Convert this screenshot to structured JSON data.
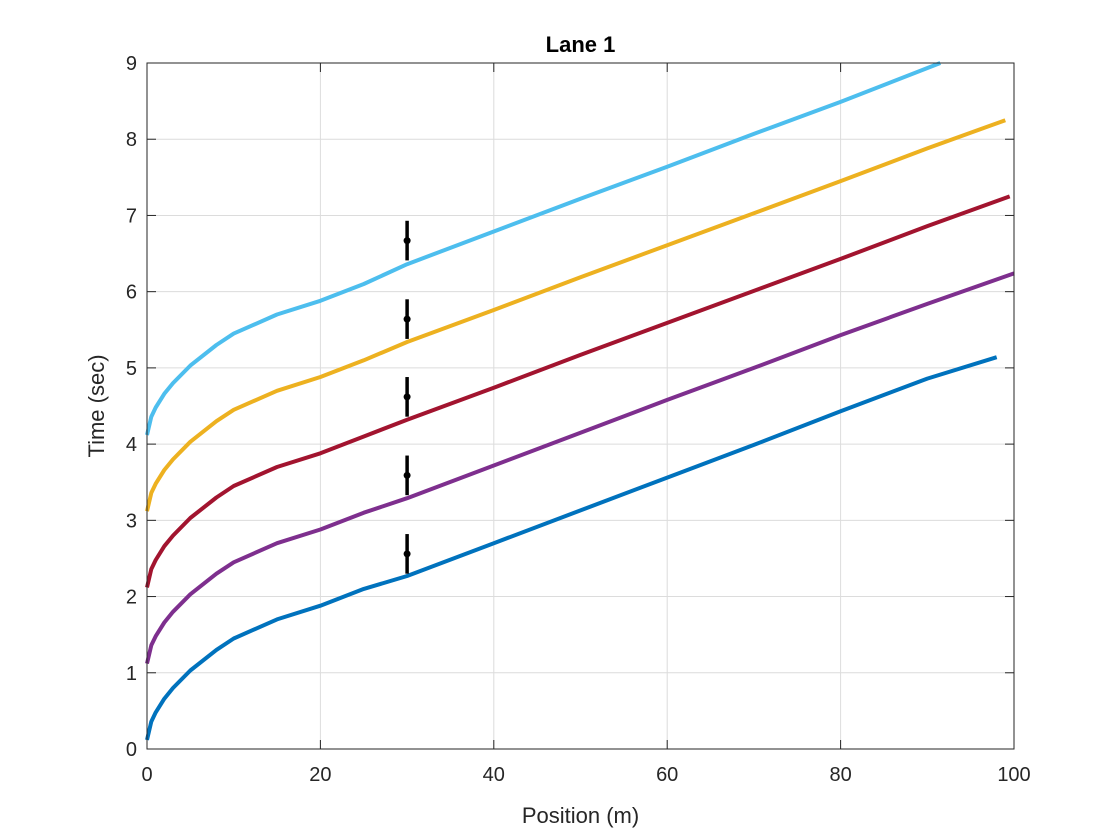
{
  "chart_data": {
    "type": "line",
    "title": "Lane 1",
    "xlabel": "Position (m)",
    "ylabel": "Time (sec)",
    "xlim": [
      0,
      100
    ],
    "ylim": [
      0,
      9
    ],
    "xticks": [
      0,
      20,
      40,
      60,
      80,
      100
    ],
    "yticks": [
      0,
      1,
      2,
      3,
      4,
      5,
      6,
      7,
      8,
      9
    ],
    "grid": true,
    "series": [
      {
        "color": "#0072BD",
        "x": [
          0,
          0.5,
          1,
          2,
          3,
          5,
          8,
          10,
          15,
          20,
          25,
          30,
          40,
          50,
          60,
          70,
          80,
          90,
          98
        ],
        "y": [
          0.12,
          0.36,
          0.48,
          0.66,
          0.8,
          1.03,
          1.3,
          1.45,
          1.7,
          1.88,
          2.1,
          2.27,
          2.7,
          3.13,
          3.56,
          3.99,
          4.43,
          4.86,
          5.14
        ]
      },
      {
        "color": "#7E2F8E",
        "x": [
          0,
          0.5,
          1,
          2,
          3,
          5,
          8,
          10,
          15,
          20,
          25,
          30,
          40,
          50,
          60,
          70,
          80,
          90,
          100
        ],
        "y": [
          1.12,
          1.36,
          1.48,
          1.66,
          1.8,
          2.03,
          2.3,
          2.45,
          2.7,
          2.88,
          3.1,
          3.29,
          3.72,
          4.15,
          4.58,
          5.0,
          5.43,
          5.84,
          6.24
        ]
      },
      {
        "color": "#A2142F",
        "x": [
          0,
          0.5,
          1,
          2,
          3,
          5,
          8,
          10,
          15,
          20,
          25,
          30,
          40,
          50,
          60,
          70,
          80,
          90,
          99.5
        ],
        "y": [
          2.12,
          2.36,
          2.48,
          2.66,
          2.8,
          3.03,
          3.3,
          3.45,
          3.7,
          3.88,
          4.1,
          4.32,
          4.74,
          5.17,
          5.59,
          6.01,
          6.43,
          6.86,
          7.25
        ]
      },
      {
        "color": "#EDB120",
        "x": [
          0,
          0.5,
          1,
          2,
          3,
          5,
          8,
          10,
          15,
          20,
          25,
          30,
          40,
          50,
          60,
          70,
          80,
          90,
          99
        ],
        "y": [
          3.12,
          3.36,
          3.48,
          3.66,
          3.8,
          4.03,
          4.3,
          4.45,
          4.7,
          4.88,
          5.1,
          5.34,
          5.76,
          6.19,
          6.61,
          7.03,
          7.45,
          7.88,
          8.25
        ]
      },
      {
        "color": "#4DBEEE",
        "x": [
          0,
          0.5,
          1,
          2,
          3,
          5,
          8,
          10,
          15,
          20,
          25,
          30,
          40,
          50,
          60,
          70,
          80,
          91.5
        ],
        "y": [
          4.12,
          4.36,
          4.48,
          4.66,
          4.8,
          5.03,
          5.3,
          5.45,
          5.7,
          5.88,
          6.1,
          6.36,
          6.79,
          7.22,
          7.64,
          8.07,
          8.49,
          9.0
        ]
      }
    ],
    "error_bars": {
      "color": "#000000",
      "points": [
        {
          "x": 30,
          "y": 2.56,
          "low": 2.3,
          "high": 2.82
        },
        {
          "x": 30,
          "y": 3.59,
          "low": 3.33,
          "high": 3.85
        },
        {
          "x": 30,
          "y": 4.62,
          "low": 4.36,
          "high": 4.88
        },
        {
          "x": 30,
          "y": 5.64,
          "low": 5.38,
          "high": 5.9
        },
        {
          "x": 30,
          "y": 6.67,
          "low": 6.41,
          "high": 6.93
        }
      ]
    }
  }
}
